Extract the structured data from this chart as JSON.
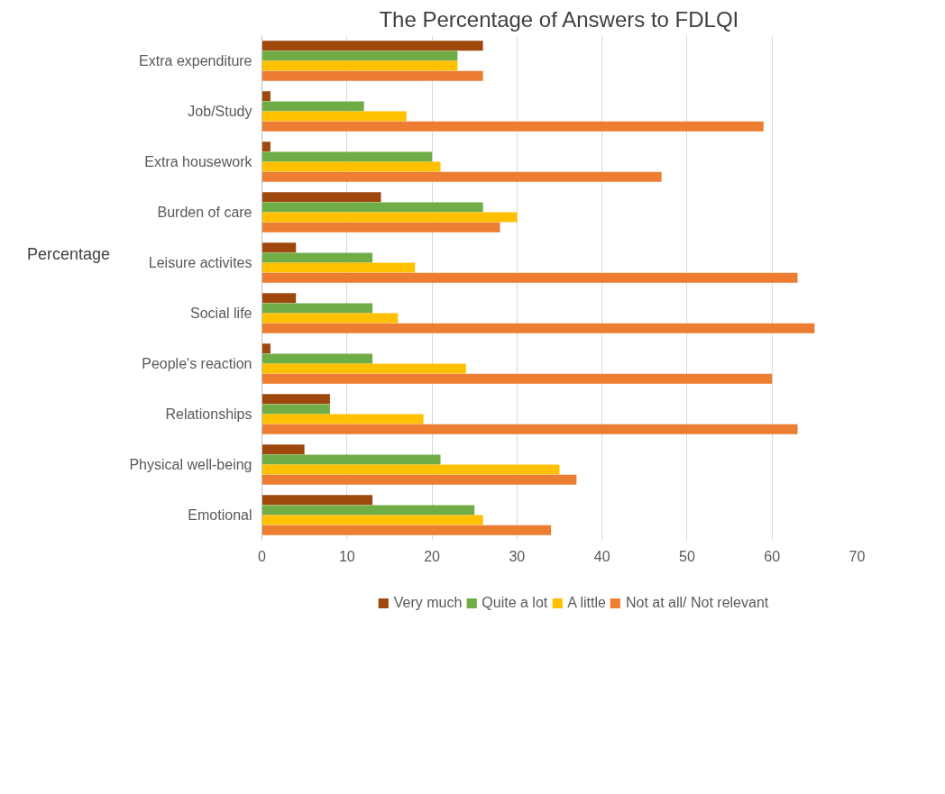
{
  "chart_data": {
    "type": "bar",
    "orientation": "horizontal",
    "title": "The Percentage of Answers to FDLQI",
    "ylabel": "Percentage",
    "categories": [
      "Extra expenditure",
      "Job/Study",
      "Extra housework",
      "Burden of care",
      "Leisure activites",
      "Social life",
      "People's reaction",
      "Relationships",
      "Physical well-being",
      "Emotional"
    ],
    "series": [
      {
        "name": "Very much",
        "color": "#9e480e",
        "values": [
          26,
          1,
          1,
          14,
          4,
          4,
          1,
          8,
          5,
          13
        ]
      },
      {
        "name": "Quite a lot",
        "color": "#70ad47",
        "values": [
          23,
          12,
          20,
          26,
          13,
          13,
          13,
          8,
          21,
          25
        ]
      },
      {
        "name": "A little",
        "color": "#ffc000",
        "values": [
          23,
          17,
          21,
          30,
          18,
          16,
          24,
          19,
          35,
          26
        ]
      },
      {
        "name": "Not at all/ Not relevant",
        "color": "#ed7d31",
        "values": [
          26,
          59,
          47,
          28,
          63,
          65,
          60,
          63,
          37,
          34
        ]
      }
    ],
    "xlim": [
      0,
      70
    ],
    "xticks": [
      0,
      10,
      20,
      30,
      40,
      50,
      60,
      70
    ],
    "grid": "x",
    "legend": "bottom"
  }
}
